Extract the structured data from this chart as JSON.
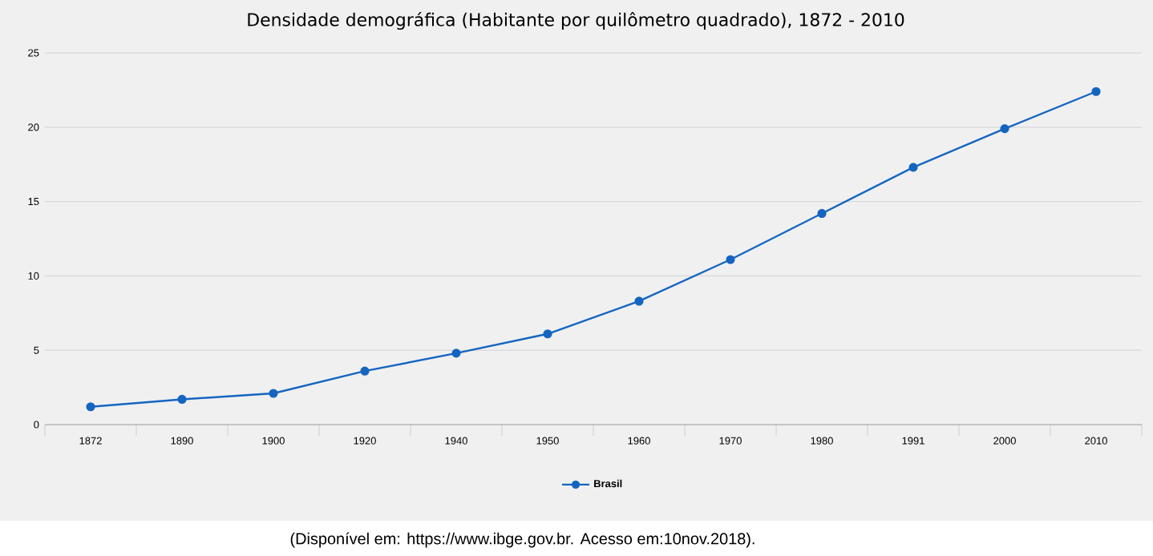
{
  "chart_data": {
    "type": "line",
    "title": "Densidade demográfica (Habitante por quilômetro quadrado), 1872 - 2010",
    "categories": [
      "1872",
      "1890",
      "1900",
      "1920",
      "1940",
      "1950",
      "1960",
      "1970",
      "1980",
      "1991",
      "2000",
      "2010"
    ],
    "series": [
      {
        "name": "Brasil",
        "color": "#1565c0",
        "values": [
          1.2,
          1.7,
          2.1,
          3.6,
          4.8,
          6.1,
          8.3,
          11.1,
          14.2,
          17.3,
          19.9,
          22.4
        ]
      }
    ],
    "ylim": [
      0,
      25
    ],
    "yticks": [
      0,
      5,
      10,
      15,
      20,
      25
    ],
    "grid": "y",
    "legend": "bottom",
    "marker": "circle",
    "line_style": "solid",
    "annotations": [
      "(Disponível em: https://www.ibge.gov.br. Acesso em:10nov.2018)."
    ]
  }
}
